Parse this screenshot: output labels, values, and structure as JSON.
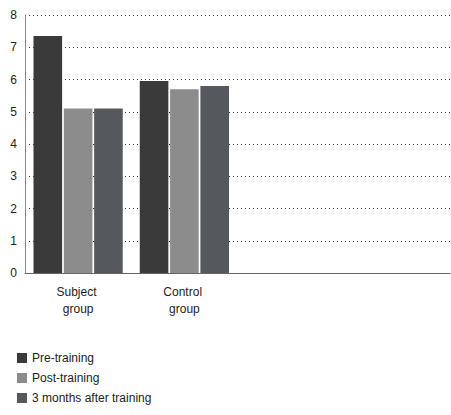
{
  "chart_data": {
    "type": "bar",
    "categories": [
      "Subject group",
      "Control group",
      null,
      null
    ],
    "series": [
      {
        "name": "Pre-training",
        "color": "#3a3a3a",
        "values": [
          7.35,
          5.95,
          null,
          null
        ]
      },
      {
        "name": "Post-training",
        "color": "#8c8c8c",
        "values": [
          5.1,
          5.7,
          null,
          null
        ]
      },
      {
        "name": "3 months after training",
        "color": "#55595d",
        "values": [
          5.1,
          5.8,
          null,
          null
        ]
      }
    ],
    "ylim": [
      0,
      8
    ],
    "yticks": [
      0,
      1,
      2,
      3,
      4,
      5,
      6,
      7,
      8
    ],
    "grid": true,
    "legend": "bottom-left"
  }
}
